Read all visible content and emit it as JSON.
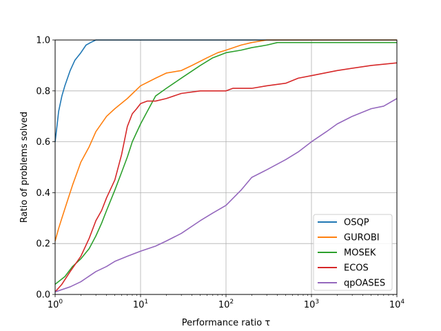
{
  "chart_data": {
    "type": "line",
    "xlabel": "Performance ratio τ",
    "ylabel": "Ratio of problems solved",
    "xscale": "log",
    "xlim": [
      1,
      10000
    ],
    "ylim": [
      0,
      1
    ],
    "grid": true,
    "legend": "lower-right",
    "xticks": [
      {
        "value": 1,
        "base": "10",
        "exp": "0"
      },
      {
        "value": 10,
        "base": "10",
        "exp": "1"
      },
      {
        "value": 100,
        "base": "10",
        "exp": "2"
      },
      {
        "value": 1000,
        "base": "10",
        "exp": "3"
      },
      {
        "value": 10000,
        "base": "10",
        "exp": "4"
      }
    ],
    "yticks": [
      {
        "value": 0.0,
        "label": "0.0"
      },
      {
        "value": 0.2,
        "label": "0.2"
      },
      {
        "value": 0.4,
        "label": "0.4"
      },
      {
        "value": 0.6,
        "label": "0.6"
      },
      {
        "value": 0.8,
        "label": "0.8"
      },
      {
        "value": 1.0,
        "label": "1.0"
      }
    ],
    "series": [
      {
        "name": "OSQP",
        "color": "#1f77b4",
        "x": [
          1.0,
          1.05,
          1.1,
          1.2,
          1.3,
          1.5,
          1.7,
          2.0,
          2.3,
          2.6,
          3.0,
          10000
        ],
        "y": [
          0.6,
          0.66,
          0.72,
          0.78,
          0.82,
          0.88,
          0.92,
          0.95,
          0.98,
          0.99,
          1.0,
          1.0
        ]
      },
      {
        "name": "GUROBI",
        "color": "#ff7f0e",
        "x": [
          1.0,
          1.1,
          1.2,
          1.4,
          1.6,
          2.0,
          2.5,
          3.0,
          4.0,
          5.0,
          7.0,
          10.0,
          15.0,
          20.0,
          30.0,
          40.0,
          60.0,
          80.0,
          100.0,
          150.0,
          200.0,
          300.0,
          500.0,
          10000
        ],
        "y": [
          0.21,
          0.26,
          0.3,
          0.37,
          0.43,
          0.52,
          0.58,
          0.64,
          0.7,
          0.73,
          0.77,
          0.82,
          0.85,
          0.87,
          0.88,
          0.9,
          0.93,
          0.95,
          0.96,
          0.98,
          0.99,
          1.0,
          1.0,
          1.0
        ]
      },
      {
        "name": "MOSEK",
        "color": "#2ca02c",
        "x": [
          1.0,
          1.3,
          1.6,
          2.0,
          2.5,
          3.0,
          3.5,
          4.0,
          5.0,
          6.0,
          7.0,
          8.0,
          10.0,
          12.0,
          15.0,
          20.0,
          30.0,
          50.0,
          70.0,
          100.0,
          150.0,
          200.0,
          300.0,
          400.0,
          10000
        ],
        "y": [
          0.04,
          0.07,
          0.11,
          0.14,
          0.18,
          0.23,
          0.28,
          0.33,
          0.41,
          0.48,
          0.54,
          0.6,
          0.67,
          0.72,
          0.78,
          0.81,
          0.85,
          0.9,
          0.93,
          0.95,
          0.96,
          0.97,
          0.98,
          0.99,
          0.99
        ]
      },
      {
        "name": "ECOS",
        "color": "#d62728",
        "x": [
          1.0,
          1.2,
          1.5,
          2.0,
          2.5,
          3.0,
          3.5,
          4.0,
          5.0,
          6.0,
          7.0,
          8.0,
          9.0,
          10.0,
          12.0,
          15.0,
          20.0,
          30.0,
          50.0,
          100.0,
          120.0,
          200.0,
          300.0,
          500.0,
          700.0,
          1000.0,
          2000.0,
          5000.0,
          10000
        ],
        "y": [
          0.01,
          0.04,
          0.09,
          0.15,
          0.22,
          0.29,
          0.33,
          0.38,
          0.45,
          0.55,
          0.66,
          0.71,
          0.73,
          0.75,
          0.76,
          0.76,
          0.77,
          0.79,
          0.8,
          0.8,
          0.81,
          0.81,
          0.82,
          0.83,
          0.85,
          0.86,
          0.88,
          0.9,
          0.91
        ]
      },
      {
        "name": "qpOASES",
        "color": "#9467bd",
        "x": [
          1.0,
          1.5,
          2.0,
          3.0,
          4.0,
          5.0,
          7.0,
          10.0,
          15.0,
          20.0,
          30.0,
          50.0,
          70.0,
          100.0,
          150.0,
          200.0,
          300.0,
          500.0,
          700.0,
          1000.0,
          1500.0,
          2000.0,
          3000.0,
          5000.0,
          7000.0,
          10000
        ],
        "y": [
          0.01,
          0.03,
          0.05,
          0.09,
          0.11,
          0.13,
          0.15,
          0.17,
          0.19,
          0.21,
          0.24,
          0.29,
          0.32,
          0.35,
          0.41,
          0.46,
          0.49,
          0.53,
          0.56,
          0.6,
          0.64,
          0.67,
          0.7,
          0.73,
          0.74,
          0.77
        ]
      }
    ]
  }
}
